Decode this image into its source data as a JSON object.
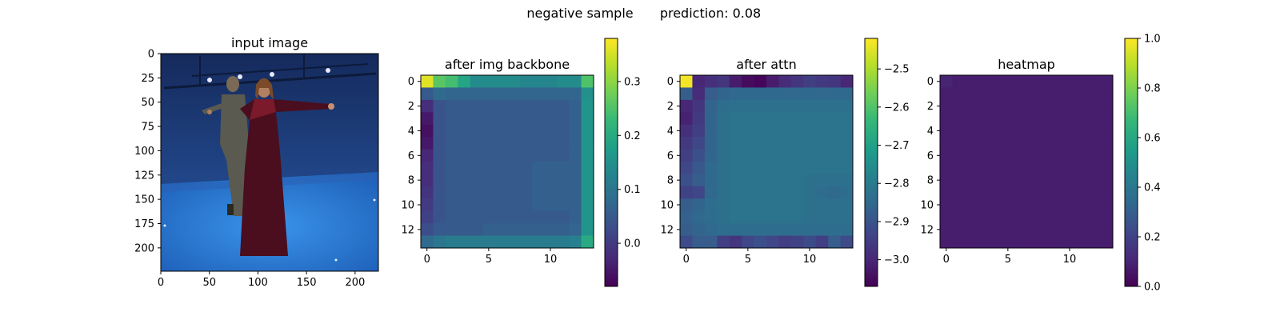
{
  "figure": {
    "suptitle_left": "negative sample",
    "suptitle_right": "prediction: 0.08"
  },
  "colors": {
    "viridis": [
      "#440154",
      "#482878",
      "#3e4989",
      "#31688e",
      "#26828e",
      "#1f9e89",
      "#35b779",
      "#6ece58",
      "#b5de2b",
      "#fde725"
    ],
    "room_wall": "#1f3a7a",
    "room_floor": "#2f7fd8",
    "person_dress": "#4a0e1e",
    "person_suit": "#5a5a50"
  },
  "chart_data": [
    {
      "type": "image",
      "title": "input image",
      "description_none": "",
      "xticks": [
        0,
        50,
        100,
        150,
        200
      ],
      "yticks": [
        0,
        25,
        50,
        75,
        100,
        125,
        150,
        175,
        200
      ],
      "xlim": [
        0,
        224
      ],
      "ylim": [
        224,
        0
      ]
    },
    {
      "type": "heatmap",
      "title": "after img backbone",
      "rows": 14,
      "cols": 14,
      "xticks": [
        0,
        5,
        10
      ],
      "yticks": [
        0,
        2,
        4,
        6,
        8,
        10,
        12
      ],
      "colorbar": {
        "min": -0.08,
        "max": 0.38,
        "ticks": [
          0.0,
          0.1,
          0.2,
          0.3
        ],
        "tick_labels": [
          "0.0",
          "0.1",
          "0.2",
          "0.3"
        ]
      },
      "values": [
        [
          0.36,
          0.26,
          0.24,
          0.19,
          0.14,
          0.14,
          0.14,
          0.14,
          0.13,
          0.13,
          0.13,
          0.14,
          0.14,
          0.25
        ],
        [
          0.05,
          0.08,
          0.07,
          0.07,
          0.07,
          0.07,
          0.07,
          0.07,
          0.07,
          0.07,
          0.07,
          0.07,
          0.07,
          0.15
        ],
        [
          -0.02,
          0.04,
          0.05,
          0.05,
          0.05,
          0.05,
          0.05,
          0.05,
          0.05,
          0.05,
          0.05,
          0.05,
          0.06,
          0.16
        ],
        [
          -0.05,
          0.04,
          0.05,
          0.05,
          0.05,
          0.05,
          0.05,
          0.05,
          0.05,
          0.05,
          0.05,
          0.05,
          0.06,
          0.16
        ],
        [
          -0.06,
          0.04,
          0.05,
          0.05,
          0.05,
          0.05,
          0.05,
          0.05,
          0.05,
          0.05,
          0.05,
          0.05,
          0.06,
          0.16
        ],
        [
          -0.05,
          0.04,
          0.05,
          0.05,
          0.05,
          0.05,
          0.05,
          0.05,
          0.05,
          0.05,
          0.05,
          0.05,
          0.06,
          0.16
        ],
        [
          -0.03,
          0.04,
          0.05,
          0.05,
          0.05,
          0.05,
          0.05,
          0.05,
          0.05,
          0.05,
          0.05,
          0.05,
          0.06,
          0.16
        ],
        [
          -0.02,
          0.04,
          0.05,
          0.05,
          0.05,
          0.05,
          0.05,
          0.05,
          0.05,
          0.06,
          0.06,
          0.06,
          0.06,
          0.16
        ],
        [
          -0.02,
          0.04,
          0.05,
          0.05,
          0.05,
          0.05,
          0.05,
          0.05,
          0.05,
          0.06,
          0.06,
          0.06,
          0.06,
          0.16
        ],
        [
          -0.01,
          0.04,
          0.05,
          0.05,
          0.05,
          0.05,
          0.05,
          0.05,
          0.05,
          0.06,
          0.06,
          0.06,
          0.06,
          0.16
        ],
        [
          0.0,
          0.04,
          0.05,
          0.05,
          0.05,
          0.05,
          0.05,
          0.05,
          0.05,
          0.06,
          0.06,
          0.06,
          0.06,
          0.16
        ],
        [
          0.01,
          0.04,
          0.05,
          0.05,
          0.05,
          0.05,
          0.05,
          0.05,
          0.05,
          0.05,
          0.05,
          0.05,
          0.06,
          0.16
        ],
        [
          0.03,
          0.05,
          0.05,
          0.05,
          0.05,
          0.06,
          0.06,
          0.06,
          0.06,
          0.06,
          0.06,
          0.06,
          0.07,
          0.16
        ],
        [
          0.08,
          0.1,
          0.11,
          0.11,
          0.11,
          0.11,
          0.11,
          0.11,
          0.11,
          0.11,
          0.11,
          0.11,
          0.12,
          0.2
        ]
      ]
    },
    {
      "type": "heatmap",
      "title": "after attn",
      "rows": 14,
      "cols": 14,
      "xticks": [
        0,
        5,
        10
      ],
      "yticks": [
        0,
        2,
        4,
        6,
        8,
        10,
        12
      ],
      "colorbar": {
        "min": -3.07,
        "max": -2.42,
        "ticks": [
          -3.0,
          -2.9,
          -2.8,
          -2.7,
          -2.6,
          -2.5
        ],
        "tick_labels": [
          "−3.0",
          "−2.9",
          "−2.8",
          "−2.7",
          "−2.6",
          "−2.5"
        ]
      },
      "values": [
        [
          -2.43,
          -3.0,
          -2.98,
          -2.97,
          -3.02,
          -3.05,
          -3.06,
          -3.02,
          -2.99,
          -2.97,
          -2.95,
          -2.96,
          -2.97,
          -3.0
        ],
        [
          -2.88,
          -2.99,
          -2.88,
          -2.86,
          -2.85,
          -2.85,
          -2.85,
          -2.85,
          -2.85,
          -2.85,
          -2.85,
          -2.85,
          -2.85,
          -2.85
        ],
        [
          -3.0,
          -2.97,
          -2.86,
          -2.84,
          -2.83,
          -2.83,
          -2.83,
          -2.83,
          -2.83,
          -2.83,
          -2.83,
          -2.83,
          -2.83,
          -2.83
        ],
        [
          -3.01,
          -2.96,
          -2.86,
          -2.83,
          -2.82,
          -2.82,
          -2.82,
          -2.82,
          -2.82,
          -2.82,
          -2.82,
          -2.82,
          -2.82,
          -2.82
        ],
        [
          -2.98,
          -2.95,
          -2.86,
          -2.83,
          -2.82,
          -2.82,
          -2.82,
          -2.82,
          -2.82,
          -2.82,
          -2.82,
          -2.82,
          -2.82,
          -2.82
        ],
        [
          -2.96,
          -2.93,
          -2.86,
          -2.83,
          -2.82,
          -2.82,
          -2.82,
          -2.82,
          -2.82,
          -2.82,
          -2.82,
          -2.82,
          -2.82,
          -2.82
        ],
        [
          -2.95,
          -2.91,
          -2.86,
          -2.83,
          -2.82,
          -2.82,
          -2.82,
          -2.82,
          -2.82,
          -2.82,
          -2.82,
          -2.82,
          -2.82,
          -2.82
        ],
        [
          -2.93,
          -2.89,
          -2.85,
          -2.83,
          -2.82,
          -2.82,
          -2.82,
          -2.82,
          -2.82,
          -2.82,
          -2.82,
          -2.82,
          -2.82,
          -2.82
        ],
        [
          -2.91,
          -2.88,
          -2.85,
          -2.83,
          -2.82,
          -2.82,
          -2.82,
          -2.82,
          -2.82,
          -2.82,
          -2.83,
          -2.83,
          -2.83,
          -2.83
        ],
        [
          -2.94,
          -2.93,
          -2.85,
          -2.83,
          -2.82,
          -2.82,
          -2.82,
          -2.82,
          -2.82,
          -2.82,
          -2.83,
          -2.84,
          -2.85,
          -2.84
        ],
        [
          -2.88,
          -2.86,
          -2.84,
          -2.83,
          -2.82,
          -2.82,
          -2.82,
          -2.82,
          -2.82,
          -2.82,
          -2.83,
          -2.83,
          -2.83,
          -2.83
        ],
        [
          -2.87,
          -2.85,
          -2.84,
          -2.83,
          -2.82,
          -2.82,
          -2.82,
          -2.82,
          -2.82,
          -2.82,
          -2.83,
          -2.83,
          -2.83,
          -2.83
        ],
        [
          -2.88,
          -2.86,
          -2.85,
          -2.84,
          -2.84,
          -2.84,
          -2.84,
          -2.84,
          -2.84,
          -2.84,
          -2.84,
          -2.84,
          -2.84,
          -2.84
        ],
        [
          -2.92,
          -2.88,
          -2.88,
          -2.95,
          -2.97,
          -2.93,
          -2.91,
          -2.93,
          -2.95,
          -2.94,
          -2.92,
          -2.95,
          -2.88,
          -2.92
        ]
      ]
    },
    {
      "type": "heatmap",
      "title": "heatmap",
      "rows": 14,
      "cols": 14,
      "xticks": [
        0,
        5,
        10
      ],
      "yticks": [
        0,
        2,
        4,
        6,
        8,
        10,
        12
      ],
      "colorbar": {
        "min": 0.0,
        "max": 1.0,
        "ticks": [
          0.0,
          0.2,
          0.4,
          0.6,
          0.8,
          1.0
        ],
        "tick_labels": [
          "0.0",
          "0.2",
          "0.4",
          "0.6",
          "0.8",
          "1.0"
        ]
      },
      "values": [
        [
          0.1,
          0.08,
          0.08,
          0.08,
          0.08,
          0.08,
          0.08,
          0.08,
          0.08,
          0.08,
          0.08,
          0.08,
          0.08,
          0.08
        ],
        [
          0.08,
          0.08,
          0.08,
          0.08,
          0.08,
          0.08,
          0.08,
          0.08,
          0.08,
          0.08,
          0.08,
          0.08,
          0.08,
          0.08
        ],
        [
          0.08,
          0.08,
          0.08,
          0.08,
          0.08,
          0.08,
          0.08,
          0.08,
          0.08,
          0.08,
          0.08,
          0.08,
          0.08,
          0.08
        ],
        [
          0.08,
          0.08,
          0.08,
          0.08,
          0.08,
          0.08,
          0.08,
          0.08,
          0.08,
          0.08,
          0.08,
          0.08,
          0.08,
          0.08
        ],
        [
          0.08,
          0.08,
          0.08,
          0.08,
          0.08,
          0.08,
          0.08,
          0.08,
          0.08,
          0.08,
          0.08,
          0.08,
          0.08,
          0.08
        ],
        [
          0.08,
          0.08,
          0.08,
          0.08,
          0.08,
          0.08,
          0.08,
          0.08,
          0.08,
          0.08,
          0.08,
          0.08,
          0.08,
          0.08
        ],
        [
          0.08,
          0.08,
          0.08,
          0.08,
          0.08,
          0.08,
          0.08,
          0.08,
          0.08,
          0.08,
          0.08,
          0.08,
          0.08,
          0.08
        ],
        [
          0.08,
          0.08,
          0.08,
          0.08,
          0.08,
          0.08,
          0.08,
          0.08,
          0.08,
          0.08,
          0.08,
          0.08,
          0.08,
          0.08
        ],
        [
          0.08,
          0.08,
          0.08,
          0.08,
          0.08,
          0.08,
          0.08,
          0.08,
          0.08,
          0.08,
          0.08,
          0.08,
          0.08,
          0.08
        ],
        [
          0.08,
          0.08,
          0.08,
          0.08,
          0.08,
          0.08,
          0.08,
          0.08,
          0.08,
          0.08,
          0.08,
          0.08,
          0.08,
          0.08
        ],
        [
          0.08,
          0.08,
          0.08,
          0.08,
          0.08,
          0.08,
          0.08,
          0.08,
          0.08,
          0.08,
          0.08,
          0.08,
          0.08,
          0.08
        ],
        [
          0.08,
          0.08,
          0.08,
          0.08,
          0.08,
          0.08,
          0.08,
          0.08,
          0.08,
          0.08,
          0.08,
          0.08,
          0.08,
          0.08
        ],
        [
          0.08,
          0.08,
          0.08,
          0.08,
          0.08,
          0.08,
          0.08,
          0.08,
          0.08,
          0.08,
          0.08,
          0.08,
          0.08,
          0.08
        ],
        [
          0.08,
          0.08,
          0.08,
          0.08,
          0.08,
          0.08,
          0.08,
          0.08,
          0.08,
          0.08,
          0.08,
          0.08,
          0.08,
          0.08
        ]
      ]
    }
  ]
}
